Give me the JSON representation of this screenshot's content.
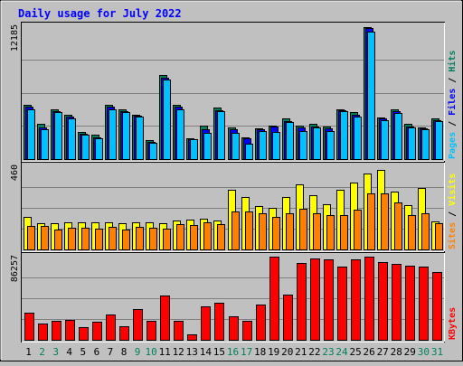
{
  "colors": {
    "background": "#c0c0c0",
    "panel": "#c0c0c0",
    "title": "#0000ff",
    "hits": "#00805c",
    "files": "#0000ff",
    "pages": "#00c0ff",
    "visits": "#ffff00",
    "sites": "#ff8000",
    "kbytes": "#ff0000",
    "weekend_day": "#00805c",
    "weekday": "#000000"
  },
  "chart_data": {
    "type": "bar",
    "title": "Daily usage for July 2022",
    "categories": [
      "1",
      "2",
      "3",
      "4",
      "5",
      "6",
      "7",
      "8",
      "9",
      "10",
      "11",
      "12",
      "13",
      "14",
      "15",
      "16",
      "17",
      "18",
      "19",
      "20",
      "21",
      "22",
      "23",
      "24",
      "25",
      "26",
      "27",
      "28",
      "29",
      "30",
      "31"
    ],
    "weekend_days": [
      "2",
      "3",
      "9",
      "10",
      "16",
      "17",
      "23",
      "24",
      "30",
      "31"
    ],
    "panels": [
      {
        "name": "hits-files-pages",
        "ymax": 12185,
        "ymax_label": "12185",
        "labels": [
          "Pages",
          "Files",
          "Hits"
        ],
        "series": [
          {
            "name": "Hits",
            "values": [
              5000,
              3200,
              4600,
              4100,
              2500,
              2200,
              5000,
              4600,
              4100,
              1700,
              7700,
              5000,
              1900,
              3100,
              4700,
              2900,
              2000,
              2800,
              3100,
              3700,
              3100,
              3200,
              3000,
              4600,
              4300,
              12100,
              3800,
              4600,
              3200,
              2900,
              3700
            ]
          },
          {
            "name": "Files",
            "values": [
              4800,
              2900,
              4400,
              3900,
              2300,
              2000,
              4800,
              4400,
              4000,
              1600,
              7500,
              4800,
              1800,
              2700,
              4500,
              2700,
              1900,
              2700,
              3000,
              3500,
              2900,
              3000,
              2800,
              4500,
              4100,
              12000,
              3700,
              4400,
              3000,
              2800,
              3600
            ]
          },
          {
            "name": "Pages",
            "values": [
              4600,
              2700,
              4300,
              3700,
              2200,
              1900,
              4600,
              4300,
              3900,
              1500,
              7300,
              4600,
              1800,
              2400,
              4400,
              2400,
              1400,
              2600,
              2500,
              3400,
              2600,
              2900,
              2600,
              4400,
              3900,
              11700,
              3600,
              4200,
              2900,
              2700,
              3500
            ]
          }
        ]
      },
      {
        "name": "visits-sites",
        "ymax": 460,
        "ymax_label": "460",
        "labels": [
          "Sites",
          "Visits"
        ],
        "series": [
          {
            "name": "Visits",
            "values": [
              180,
              145,
              145,
              150,
              150,
              150,
              150,
              145,
              150,
              150,
              145,
              160,
              165,
              170,
              160,
              330,
              290,
              240,
              230,
              290,
              360,
              300,
              250,
              330,
              370,
              420,
              440,
              320,
              245,
              340,
              155
            ]
          },
          {
            "name": "Sites",
            "values": [
              130,
              130,
              110,
              120,
              120,
              115,
              125,
              110,
              125,
              120,
              115,
              140,
              135,
              150,
              140,
              210,
              210,
              200,
              180,
              200,
              225,
              200,
              190,
              190,
              220,
              310,
              310,
              260,
              190,
              200,
              145
            ]
          }
        ]
      },
      {
        "name": "kbytes",
        "ymax": 86257,
        "ymax_label": "86257",
        "labels": [
          "KBytes"
        ],
        "series": [
          {
            "name": "KBytes",
            "values": [
              28000,
              17000,
              20000,
              21000,
              13000,
              19000,
              26000,
              14000,
              32000,
              20000,
              46000,
              20000,
              6000,
              35000,
              38000,
              24000,
              20000,
              37000,
              86000,
              47000,
              80000,
              84000,
              83000,
              76000,
              83000,
              86000,
              81000,
              79000,
              77000,
              76000,
              70000
            ]
          }
        ]
      }
    ]
  }
}
